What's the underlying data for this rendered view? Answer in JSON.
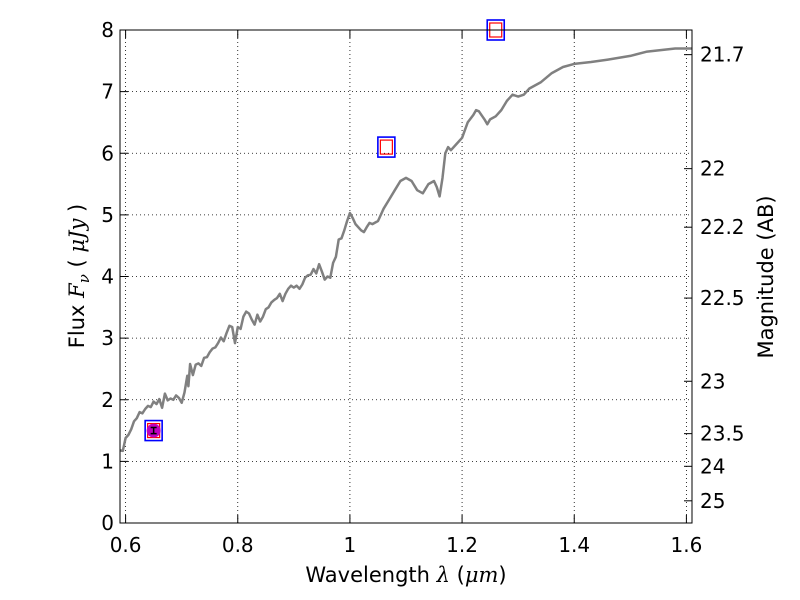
{
  "chart_data": {
    "type": "line",
    "xlabel": "Wavelength",
    "xlabel_symbol": "λ",
    "xlabel_unit": "μm",
    "ylabel": "Flux",
    "ylabel_symbol": "F",
    "ylabel_subscript": "ν",
    "ylabel_unit": "μJy",
    "y2label": "Magnitude (AB)",
    "xlim": [
      0.59,
      1.61
    ],
    "ylim": [
      0,
      8
    ],
    "grid": true,
    "grid_style": "dotted",
    "x_ticks": [
      0.6,
      0.8,
      1.0,
      1.2,
      1.4,
      1.6
    ],
    "x_tick_labels": [
      "0.6",
      "0.8",
      "1",
      "1.2",
      "1.4",
      "1.6"
    ],
    "y_ticks": [
      0,
      1,
      2,
      3,
      4,
      5,
      6,
      7,
      8
    ],
    "y_tick_labels": [
      "0",
      "1",
      "2",
      "3",
      "4",
      "5",
      "6",
      "7",
      "8"
    ],
    "y2_ticks": [
      {
        "label": "21.7",
        "flux": 7.6
      },
      {
        "label": "22",
        "flux": 5.75
      },
      {
        "label": "22.2",
        "flux": 4.8
      },
      {
        "label": "22.5",
        "flux": 3.65
      },
      {
        "label": "23",
        "flux": 2.3
      },
      {
        "label": "23.5",
        "flux": 1.45
      },
      {
        "label": "24",
        "flux": 0.92
      },
      {
        "label": "25",
        "flux": 0.36
      }
    ],
    "series": [
      {
        "kind": "model-spectrum",
        "color": "#808080",
        "points": [
          [
            0.59,
            1.18
          ],
          [
            0.595,
            1.17
          ],
          [
            0.6,
            1.38
          ],
          [
            0.605,
            1.43
          ],
          [
            0.61,
            1.52
          ],
          [
            0.615,
            1.65
          ],
          [
            0.62,
            1.7
          ],
          [
            0.625,
            1.8
          ],
          [
            0.63,
            1.78
          ],
          [
            0.635,
            1.85
          ],
          [
            0.64,
            1.9
          ],
          [
            0.645,
            1.88
          ],
          [
            0.65,
            1.97
          ],
          [
            0.655,
            1.93
          ],
          [
            0.66,
            2.01
          ],
          [
            0.665,
            1.87
          ],
          [
            0.67,
            2.1
          ],
          [
            0.675,
            1.99
          ],
          [
            0.68,
            2.02
          ],
          [
            0.685,
            2.0
          ],
          [
            0.69,
            2.07
          ],
          [
            0.695,
            2.03
          ],
          [
            0.7,
            1.95
          ],
          [
            0.705,
            2.12
          ],
          [
            0.71,
            2.39
          ],
          [
            0.712,
            2.22
          ],
          [
            0.715,
            2.58
          ],
          [
            0.72,
            2.4
          ],
          [
            0.725,
            2.57
          ],
          [
            0.73,
            2.59
          ],
          [
            0.735,
            2.55
          ],
          [
            0.74,
            2.68
          ],
          [
            0.745,
            2.69
          ],
          [
            0.75,
            2.77
          ],
          [
            0.755,
            2.83
          ],
          [
            0.76,
            2.85
          ],
          [
            0.765,
            2.92
          ],
          [
            0.77,
            3.01
          ],
          [
            0.775,
            2.95
          ],
          [
            0.78,
            3.08
          ],
          [
            0.785,
            3.2
          ],
          [
            0.79,
            3.18
          ],
          [
            0.795,
            2.92
          ],
          [
            0.8,
            3.18
          ],
          [
            0.805,
            3.15
          ],
          [
            0.81,
            3.35
          ],
          [
            0.815,
            3.43
          ],
          [
            0.82,
            3.4
          ],
          [
            0.825,
            3.3
          ],
          [
            0.83,
            3.22
          ],
          [
            0.835,
            3.38
          ],
          [
            0.84,
            3.27
          ],
          [
            0.845,
            3.35
          ],
          [
            0.85,
            3.47
          ],
          [
            0.855,
            3.5
          ],
          [
            0.86,
            3.58
          ],
          [
            0.865,
            3.62
          ],
          [
            0.87,
            3.65
          ],
          [
            0.875,
            3.72
          ],
          [
            0.88,
            3.6
          ],
          [
            0.885,
            3.72
          ],
          [
            0.89,
            3.8
          ],
          [
            0.895,
            3.85
          ],
          [
            0.9,
            3.82
          ],
          [
            0.905,
            3.85
          ],
          [
            0.91,
            3.8
          ],
          [
            0.915,
            3.87
          ],
          [
            0.92,
            3.98
          ],
          [
            0.925,
            4.02
          ],
          [
            0.93,
            4.03
          ],
          [
            0.935,
            4.12
          ],
          [
            0.94,
            4.05
          ],
          [
            0.945,
            4.2
          ],
          [
            0.95,
            4.08
          ],
          [
            0.955,
            3.95
          ],
          [
            0.96,
            4.0
          ],
          [
            0.965,
            3.98
          ],
          [
            0.97,
            4.22
          ],
          [
            0.975,
            4.32
          ],
          [
            0.98,
            4.6
          ],
          [
            0.985,
            4.62
          ],
          [
            0.99,
            4.75
          ],
          [
            0.995,
            4.9
          ],
          [
            1.0,
            5.03
          ],
          [
            1.005,
            4.95
          ],
          [
            1.01,
            4.85
          ],
          [
            1.02,
            4.75
          ],
          [
            1.025,
            4.72
          ],
          [
            1.03,
            4.8
          ],
          [
            1.035,
            4.87
          ],
          [
            1.04,
            4.85
          ],
          [
            1.05,
            4.9
          ],
          [
            1.06,
            5.1
          ],
          [
            1.07,
            5.25
          ],
          [
            1.08,
            5.4
          ],
          [
            1.09,
            5.55
          ],
          [
            1.1,
            5.6
          ],
          [
            1.11,
            5.55
          ],
          [
            1.12,
            5.4
          ],
          [
            1.13,
            5.35
          ],
          [
            1.14,
            5.5
          ],
          [
            1.15,
            5.55
          ],
          [
            1.155,
            5.45
          ],
          [
            1.16,
            5.3
          ],
          [
            1.165,
            5.6
          ],
          [
            1.17,
            6.0
          ],
          [
            1.175,
            6.1
          ],
          [
            1.18,
            6.05
          ],
          [
            1.19,
            6.15
          ],
          [
            1.2,
            6.25
          ],
          [
            1.21,
            6.5
          ],
          [
            1.22,
            6.62
          ],
          [
            1.225,
            6.7
          ],
          [
            1.23,
            6.68
          ],
          [
            1.24,
            6.55
          ],
          [
            1.245,
            6.47
          ],
          [
            1.25,
            6.55
          ],
          [
            1.26,
            6.6
          ],
          [
            1.27,
            6.7
          ],
          [
            1.28,
            6.85
          ],
          [
            1.29,
            6.95
          ],
          [
            1.3,
            6.92
          ],
          [
            1.31,
            6.95
          ],
          [
            1.32,
            7.05
          ],
          [
            1.34,
            7.15
          ],
          [
            1.36,
            7.3
          ],
          [
            1.38,
            7.4
          ],
          [
            1.4,
            7.45
          ],
          [
            1.43,
            7.48
          ],
          [
            1.46,
            7.52
          ],
          [
            1.5,
            7.58
          ],
          [
            1.53,
            7.65
          ],
          [
            1.56,
            7.68
          ],
          [
            1.58,
            7.7
          ],
          [
            1.6,
            7.7
          ],
          [
            1.61,
            7.7
          ]
        ]
      }
    ],
    "model_photometry": [
      {
        "x": 0.65,
        "y": 1.5
      },
      {
        "x": 1.065,
        "y": 6.1
      },
      {
        "x": 1.26,
        "y": 8.0
      }
    ],
    "observed_points": [
      {
        "x": 0.65,
        "y": 1.5,
        "yerr": 0.05
      }
    ],
    "colors": {
      "model_line": "#808080",
      "model_box_outer": "#0000ff",
      "model_box_inner": "#ff0000",
      "observed": "#bf00bf",
      "errorbar": "#000000"
    }
  }
}
